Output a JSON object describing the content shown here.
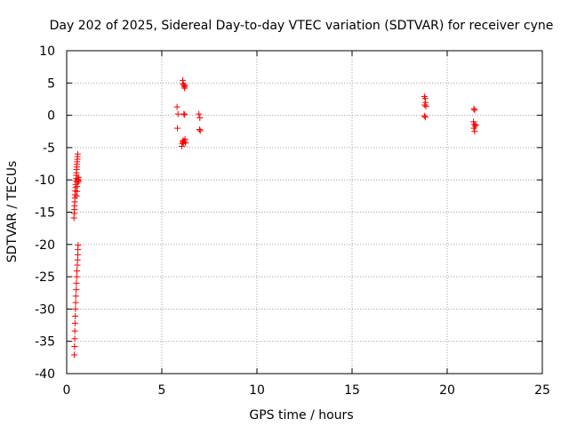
{
  "chart_data": {
    "type": "scatter",
    "title": "Day 202 of 2025, Sidereal Day-to-day VTEC variation (SDTVAR) for receiver cyne",
    "xlabel": "GPS time / hours",
    "ylabel": "SDTVAR / TECUs",
    "xlim": [
      0,
      25
    ],
    "ylim": [
      -40,
      10
    ],
    "xticks": [
      0,
      5,
      10,
      15,
      20,
      25
    ],
    "yticks": [
      10,
      5,
      0,
      -5,
      -10,
      -15,
      -20,
      -25,
      -30,
      -35,
      -40
    ],
    "grid": true,
    "marker": "plus",
    "colors": {
      "series": "#ff0000",
      "grid": "#a0a0a0",
      "axis": "#000000"
    },
    "series": [
      {
        "name": "SDTVAR",
        "points": [
          [
            0.4,
            -37.1
          ],
          [
            0.41,
            -35.8
          ],
          [
            0.42,
            -34.6
          ],
          [
            0.43,
            -33.4
          ],
          [
            0.44,
            -32.2
          ],
          [
            0.45,
            -31.1
          ],
          [
            0.46,
            -30.0
          ],
          [
            0.47,
            -29.0
          ],
          [
            0.48,
            -28.0
          ],
          [
            0.5,
            -27.0
          ],
          [
            0.51,
            -26.0
          ],
          [
            0.53,
            -25.0
          ],
          [
            0.54,
            -24.1
          ],
          [
            0.56,
            -23.2
          ],
          [
            0.57,
            -22.4
          ],
          [
            0.58,
            -21.6
          ],
          [
            0.59,
            -20.8
          ],
          [
            0.6,
            -20.1
          ],
          [
            0.38,
            -15.9
          ],
          [
            0.39,
            -15.2
          ],
          [
            0.4,
            -14.6
          ],
          [
            0.41,
            -14.0
          ],
          [
            0.42,
            -13.4
          ],
          [
            0.43,
            -12.8
          ],
          [
            0.44,
            -12.3
          ],
          [
            0.45,
            -11.7
          ],
          [
            0.46,
            -11.2
          ],
          [
            0.47,
            -10.7
          ],
          [
            0.48,
            -10.2
          ],
          [
            0.49,
            -9.8
          ],
          [
            0.5,
            -9.3
          ],
          [
            0.51,
            -8.9
          ],
          [
            0.52,
            -8.4
          ],
          [
            0.53,
            -8.0
          ],
          [
            0.54,
            -7.6
          ],
          [
            0.55,
            -7.2
          ],
          [
            0.56,
            -6.8
          ],
          [
            0.57,
            -6.4
          ],
          [
            0.58,
            -6.0
          ],
          [
            0.52,
            -12.5
          ],
          [
            0.54,
            -11.8
          ],
          [
            0.55,
            -11.0
          ],
          [
            0.57,
            -10.4
          ],
          [
            0.58,
            -9.9
          ],
          [
            0.6,
            -10.1
          ],
          [
            0.62,
            -9.6
          ],
          [
            0.64,
            -10.2
          ],
          [
            5.8,
            1.3
          ],
          [
            5.85,
            0.2
          ],
          [
            5.82,
            -2.0
          ],
          [
            6.1,
            5.4
          ],
          [
            6.12,
            4.9
          ],
          [
            6.15,
            4.7
          ],
          [
            6.18,
            4.4
          ],
          [
            6.2,
            4.2
          ],
          [
            6.22,
            4.6
          ],
          [
            6.16,
            0.2
          ],
          [
            6.2,
            0.1
          ],
          [
            6.05,
            -4.8
          ],
          [
            6.08,
            -4.4
          ],
          [
            6.1,
            -4.1
          ],
          [
            6.12,
            -3.9
          ],
          [
            6.15,
            -4.2
          ],
          [
            6.18,
            -4.0
          ],
          [
            6.22,
            -3.7
          ],
          [
            6.25,
            -4.3
          ],
          [
            6.95,
            0.2
          ],
          [
            7.0,
            -0.4
          ],
          [
            6.98,
            -2.2
          ],
          [
            7.02,
            -2.4
          ],
          [
            18.8,
            2.9
          ],
          [
            18.84,
            2.6
          ],
          [
            18.86,
            2.0
          ],
          [
            18.82,
            1.6
          ],
          [
            18.88,
            1.4
          ],
          [
            18.8,
            -0.1
          ],
          [
            18.85,
            -0.3
          ],
          [
            21.4,
            1.0
          ],
          [
            21.44,
            0.8
          ],
          [
            21.38,
            -1.0
          ],
          [
            21.42,
            -1.4
          ],
          [
            21.46,
            -1.7
          ],
          [
            21.5,
            -1.5
          ],
          [
            21.4,
            -2.0
          ],
          [
            21.44,
            -2.5
          ]
        ]
      }
    ]
  }
}
